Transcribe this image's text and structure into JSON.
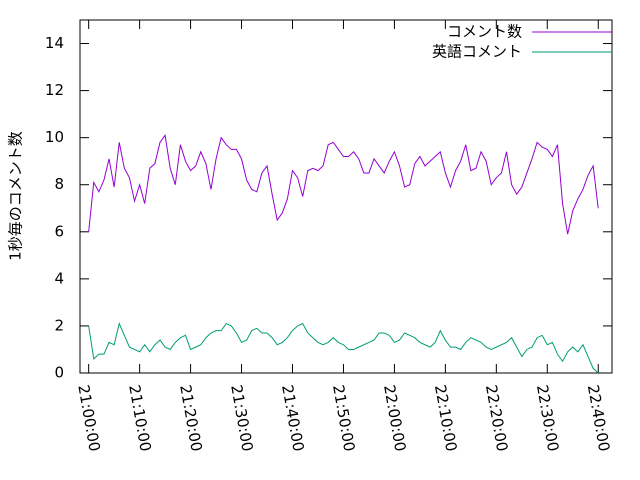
{
  "chart_data": {
    "type": "line",
    "ylabel": "1秒毎のコメント数",
    "x": [
      0,
      1,
      2,
      3,
      4,
      5,
      6,
      7,
      8,
      9,
      10,
      11,
      12,
      13,
      14,
      15,
      16,
      17,
      18,
      19,
      20,
      21,
      22,
      23,
      24,
      25,
      26,
      27,
      28,
      29,
      30,
      31,
      32,
      33,
      34,
      35,
      36,
      37,
      38,
      39,
      40,
      41,
      42,
      43,
      44,
      45,
      46,
      47,
      48,
      49,
      50,
      51,
      52,
      53,
      54,
      55,
      56,
      57,
      58,
      59,
      60,
      61,
      62,
      63,
      64,
      65,
      66,
      67,
      68,
      69,
      70,
      71,
      72,
      73,
      74,
      75,
      76,
      77,
      78,
      79,
      80,
      81,
      82,
      83,
      84,
      85,
      86,
      87,
      88,
      89,
      90,
      91,
      92,
      93,
      94,
      95,
      96,
      97,
      98,
      99,
      100
    ],
    "series": [
      {
        "name": "コメント数",
        "color": "#9400d3",
        "values": [
          6.0,
          8.1,
          7.7,
          8.2,
          9.1,
          7.9,
          9.8,
          8.7,
          8.3,
          7.3,
          8.0,
          7.2,
          8.7,
          8.9,
          9.8,
          10.1,
          8.7,
          8.0,
          9.7,
          9.0,
          8.6,
          8.8,
          9.4,
          8.9,
          7.8,
          9.1,
          10.0,
          9.7,
          9.5,
          9.5,
          9.1,
          8.2,
          7.8,
          7.7,
          8.5,
          8.8,
          7.6,
          6.5,
          6.8,
          7.4,
          8.6,
          8.3,
          7.5,
          8.6,
          8.7,
          8.6,
          8.8,
          9.7,
          9.8,
          9.5,
          9.2,
          9.2,
          9.4,
          9.1,
          8.5,
          8.5,
          9.1,
          8.8,
          8.5,
          9.0,
          9.4,
          8.8,
          7.9,
          8.0,
          8.9,
          9.2,
          8.8,
          9.0,
          9.2,
          9.4,
          8.5,
          7.9,
          8.6,
          9.0,
          9.7,
          8.6,
          8.7,
          9.4,
          9.0,
          8.0,
          8.3,
          8.5,
          9.4,
          8.0,
          7.6,
          7.9,
          8.5,
          9.1,
          9.8,
          9.6,
          9.5,
          9.2,
          9.7,
          7.2,
          5.9,
          6.9,
          7.4,
          7.8,
          8.4,
          8.8,
          7.0
        ]
      },
      {
        "name": "英語コメント",
        "color": "#009e73",
        "values": [
          2.0,
          0.6,
          0.8,
          0.8,
          1.3,
          1.2,
          2.1,
          1.6,
          1.1,
          1.0,
          0.9,
          1.2,
          0.9,
          1.2,
          1.4,
          1.1,
          1.0,
          1.3,
          1.5,
          1.6,
          1.0,
          1.1,
          1.2,
          1.5,
          1.7,
          1.8,
          1.8,
          2.1,
          2.0,
          1.7,
          1.3,
          1.4,
          1.8,
          1.9,
          1.7,
          1.7,
          1.5,
          1.2,
          1.3,
          1.5,
          1.8,
          2.0,
          2.1,
          1.7,
          1.5,
          1.3,
          1.2,
          1.3,
          1.5,
          1.3,
          1.2,
          1.0,
          1.0,
          1.1,
          1.2,
          1.3,
          1.4,
          1.7,
          1.7,
          1.6,
          1.3,
          1.4,
          1.7,
          1.6,
          1.5,
          1.3,
          1.2,
          1.1,
          1.3,
          1.8,
          1.4,
          1.1,
          1.1,
          1.0,
          1.3,
          1.5,
          1.4,
          1.3,
          1.1,
          1.0,
          1.1,
          1.2,
          1.3,
          1.5,
          1.1,
          0.7,
          1.0,
          1.1,
          1.5,
          1.6,
          1.2,
          1.3,
          0.8,
          0.5,
          0.9,
          1.1,
          0.9,
          1.2,
          0.7,
          0.2,
          0.0
        ]
      }
    ],
    "xlim": [
      -1.7,
      102.7
    ],
    "xticks": [
      {
        "value": 0,
        "label": "21:00:00"
      },
      {
        "value": 10,
        "label": "21:10:00"
      },
      {
        "value": 20,
        "label": "21:20:00"
      },
      {
        "value": 30,
        "label": "21:30:00"
      },
      {
        "value": 40,
        "label": "21:40:00"
      },
      {
        "value": 50,
        "label": "21:50:00"
      },
      {
        "value": 60,
        "label": "22:00:00"
      },
      {
        "value": 70,
        "label": "22:10:00"
      },
      {
        "value": 80,
        "label": "22:20:00"
      },
      {
        "value": 90,
        "label": "22:30:00"
      },
      {
        "value": 100,
        "label": "22:40:00"
      }
    ],
    "ylim": [
      0,
      15
    ],
    "yticks": [
      0,
      2,
      4,
      6,
      8,
      10,
      12,
      14
    ],
    "legend": "top-right"
  }
}
